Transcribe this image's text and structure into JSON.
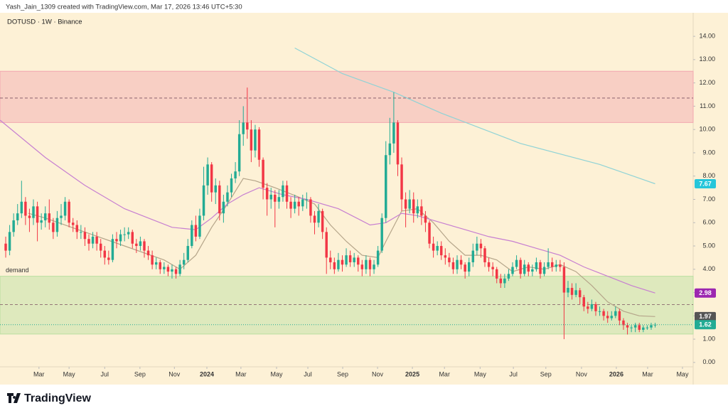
{
  "header": "Yash_Jain_1309 created with TradingView.com, Mar 17, 2026 13:46 UTC+5:30",
  "brand": "TradingView",
  "chart_data": {
    "type": "candlestick",
    "title": "DOTUSD · 1W · Binance",
    "up_color": "#22ab94",
    "down_color": "#f23645",
    "xlim": [
      -1.44,
      173.6
    ],
    "xticks": [
      {
        "value": 8.4,
        "label": "Mar"
      },
      {
        "value": 16.0,
        "label": "May"
      },
      {
        "value": 25.0,
        "label": "Jul"
      },
      {
        "value": 33.9,
        "label": "Sep"
      },
      {
        "value": 42.6,
        "label": "Nov"
      },
      {
        "value": 50.8,
        "label": "2024"
      },
      {
        "value": 59.4,
        "label": "Mar"
      },
      {
        "value": 68.4,
        "label": "May"
      },
      {
        "value": 76.3,
        "label": "Jul"
      },
      {
        "value": 85.1,
        "label": "Sep"
      },
      {
        "value": 93.9,
        "label": "Nov"
      },
      {
        "value": 102.7,
        "label": "2025"
      },
      {
        "value": 110.8,
        "label": "Mar"
      },
      {
        "value": 119.8,
        "label": "May"
      },
      {
        "value": 128.2,
        "label": "Jul"
      },
      {
        "value": 136.4,
        "label": "Sep"
      },
      {
        "value": 145.4,
        "label": "Nov"
      },
      {
        "value": 154.2,
        "label": "2026"
      },
      {
        "value": 162.1,
        "label": "Mar"
      },
      {
        "value": 170.9,
        "label": "May"
      }
    ],
    "ylim": [
      -0.95,
      15.01
    ],
    "yticks": [
      {
        "value": 0,
        "label": "0.00"
      },
      {
        "value": 1,
        "label": "1.00"
      },
      {
        "value": 2,
        "label": "2.00"
      },
      {
        "value": 3,
        "label": "3.00"
      },
      {
        "value": 4,
        "label": "4.00"
      },
      {
        "value": 5,
        "label": "5.00"
      },
      {
        "value": 6,
        "label": "6.00"
      },
      {
        "value": 7,
        "label": "7.00"
      },
      {
        "value": 8,
        "label": "8.00"
      },
      {
        "value": 9,
        "label": "9.00"
      },
      {
        "value": 10,
        "label": "10.00"
      },
      {
        "value": 11,
        "label": "11.00"
      },
      {
        "value": 12,
        "label": "12.00"
      },
      {
        "value": 13,
        "label": "13.00"
      },
      {
        "value": 14,
        "label": "14.00"
      }
    ],
    "open": [
      5.1,
      4.8,
      5.6,
      6.1,
      6.4,
      6.9,
      6.3,
      6.2,
      6.7,
      6.0,
      6.1,
      6.4,
      6.0,
      5.6,
      6.2,
      6.3,
      6.9,
      6.0,
      5.9,
      5.6,
      5.6,
      5.3,
      5.1,
      5.4,
      5.1,
      4.8,
      4.5,
      4.4,
      5.3,
      5.2,
      5.5,
      5.5,
      5.6,
      5.1,
      5.0,
      5.2,
      4.8,
      4.6,
      4.2,
      4.3,
      4.0,
      4.1,
      3.9,
      4.0,
      3.8,
      4.2,
      4.4,
      5.0,
      5.9,
      5.4,
      6.3,
      7.6,
      8.5,
      7.3,
      7.6,
      6.4,
      6.9,
      7.3,
      7.9,
      8.2,
      9.8,
      10.3,
      10.0,
      9.1,
      10.0,
      8.7,
      7.5,
      7.0,
      7.2,
      6.9,
      7.1,
      7.6,
      6.9,
      6.6,
      6.9,
      6.7,
      7.0,
      7.0,
      6.3,
      6.0,
      6.5,
      5.6,
      4.5,
      4.3,
      4.0,
      4.4,
      4.2,
      4.6,
      4.3,
      4.5,
      4.2,
      4.0,
      4.4,
      4.0,
      4.2,
      4.8,
      6.2,
      8.9,
      9.4,
      10.3,
      8.5,
      7.0,
      6.6,
      7.0,
      6.4,
      6.7,
      6.3,
      6.0,
      5.1,
      4.8,
      5.0,
      4.6,
      4.5,
      4.3,
      4.0,
      4.4,
      4.2,
      3.9,
      4.3,
      4.8,
      5.1,
      4.9,
      4.3,
      4.1,
      4.0,
      3.6,
      3.4,
      3.6,
      3.8,
      4.1,
      4.4,
      3.8,
      4.2,
      3.9,
      4.0,
      4.3,
      3.8,
      4.1,
      4.3,
      4.1,
      4.2,
      4.1,
      3.0,
      3.2,
      2.9,
      3.1,
      2.8,
      2.4,
      2.3,
      2.5,
      2.2,
      2.2,
      2.0,
      1.9,
      2.0,
      2.2,
      1.8,
      1.6,
      1.5,
      1.5,
      1.6,
      1.4,
      1.5,
      1.5,
      1.6
    ],
    "high": [
      5.4,
      5.9,
      6.4,
      6.8,
      7.8,
      7.1,
      6.6,
      7.0,
      6.9,
      6.4,
      6.7,
      7.0,
      6.2,
      6.5,
      6.8,
      7.1,
      7.0,
      6.2,
      6.1,
      5.9,
      5.8,
      5.5,
      5.6,
      5.6,
      5.3,
      5.0,
      4.8,
      5.5,
      5.6,
      5.7,
      5.8,
      5.8,
      5.7,
      5.3,
      5.4,
      5.3,
      5.0,
      4.8,
      4.5,
      4.4,
      4.3,
      4.2,
      4.2,
      4.1,
      4.4,
      4.7,
      5.3,
      6.1,
      6.3,
      6.6,
      8.4,
      8.8,
      8.6,
      7.9,
      7.8,
      7.2,
      7.6,
      8.1,
      8.6,
      10.4,
      11.0,
      11.8,
      10.4,
      10.2,
      10.1,
      8.8,
      7.7,
      7.5,
      7.4,
      7.4,
      7.8,
      7.8,
      7.1,
      7.2,
      7.1,
      7.2,
      7.3,
      7.1,
      6.5,
      6.8,
      6.6,
      5.8,
      4.8,
      4.5,
      4.7,
      4.6,
      4.9,
      4.8,
      4.7,
      4.6,
      4.4,
      4.6,
      4.5,
      4.4,
      5.0,
      6.4,
      9.5,
      10.5,
      11.6,
      10.4,
      8.8,
      7.3,
      7.4,
      7.3,
      7.0,
      7.0,
      6.5,
      6.1,
      5.4,
      5.2,
      5.2,
      4.9,
      4.7,
      4.5,
      4.6,
      4.6,
      4.3,
      4.5,
      5.1,
      5.4,
      5.3,
      5.0,
      4.5,
      4.3,
      4.1,
      3.8,
      3.8,
      4.0,
      4.3,
      4.6,
      4.5,
      4.4,
      4.3,
      4.2,
      4.5,
      4.4,
      4.3,
      4.9,
      4.5,
      4.4,
      4.4,
      4.3,
      3.5,
      3.4,
      3.4,
      3.2,
      2.9,
      2.6,
      2.7,
      2.6,
      2.4,
      2.3,
      2.2,
      2.2,
      2.4,
      2.3,
      1.9,
      1.7,
      1.6,
      1.7,
      1.7,
      1.6,
      1.6,
      1.7,
      1.7
    ],
    "low": [
      4.5,
      4.6,
      5.4,
      5.9,
      6.2,
      5.9,
      5.6,
      5.9,
      5.2,
      5.7,
      5.8,
      5.7,
      5.3,
      5.4,
      5.9,
      6.1,
      5.8,
      5.6,
      5.3,
      5.3,
      5.0,
      4.8,
      4.9,
      4.8,
      4.5,
      4.2,
      4.2,
      4.3,
      4.9,
      5.0,
      5.2,
      5.3,
      4.9,
      4.7,
      4.8,
      4.5,
      4.4,
      4.0,
      4.0,
      3.8,
      3.8,
      3.7,
      3.6,
      3.6,
      3.7,
      4.0,
      4.3,
      4.9,
      5.2,
      5.3,
      6.1,
      7.2,
      6.9,
      6.8,
      6.1,
      6.0,
      6.7,
      7.1,
      7.7,
      8.0,
      9.3,
      9.6,
      8.6,
      8.8,
      8.4,
      7.0,
      6.3,
      6.6,
      5.8,
      6.6,
      6.9,
      6.6,
      6.2,
      6.4,
      6.3,
      6.5,
      6.6,
      6.0,
      5.5,
      5.8,
      5.3,
      3.8,
      4.0,
      3.8,
      3.9,
      3.9,
      4.1,
      4.1,
      4.1,
      3.9,
      3.7,
      3.8,
      3.7,
      3.8,
      4.1,
      4.7,
      6.0,
      8.5,
      9.0,
      8.0,
      6.5,
      5.8,
      6.4,
      6.0,
      6.2,
      5.9,
      5.6,
      4.9,
      4.5,
      4.6,
      4.4,
      4.2,
      4.1,
      3.8,
      3.8,
      4.0,
      3.6,
      3.7,
      4.1,
      4.6,
      4.5,
      4.1,
      3.9,
      3.7,
      3.4,
      3.2,
      3.2,
      3.5,
      3.7,
      4.0,
      3.6,
      3.7,
      3.7,
      3.7,
      3.9,
      3.6,
      3.7,
      4.0,
      3.9,
      3.9,
      3.9,
      1.0,
      2.8,
      2.7,
      2.8,
      2.5,
      2.2,
      2.1,
      2.2,
      2.0,
      2.0,
      1.8,
      1.7,
      1.8,
      1.9,
      1.6,
      1.4,
      1.2,
      1.3,
      1.3,
      1.3,
      1.3,
      1.4,
      1.4,
      1.5
    ],
    "close": [
      4.8,
      5.6,
      6.1,
      6.4,
      6.9,
      6.3,
      6.2,
      6.7,
      6.0,
      6.1,
      6.4,
      6.0,
      5.6,
      6.2,
      6.3,
      6.9,
      6.0,
      5.9,
      5.6,
      5.6,
      5.3,
      5.1,
      5.4,
      5.1,
      4.8,
      4.5,
      4.4,
      5.3,
      5.2,
      5.5,
      5.5,
      5.6,
      5.1,
      5.0,
      5.2,
      4.8,
      4.6,
      4.2,
      4.3,
      4.0,
      4.1,
      3.9,
      4.0,
      3.8,
      4.2,
      4.4,
      5.0,
      5.9,
      5.4,
      6.3,
      7.6,
      8.5,
      7.3,
      7.6,
      6.4,
      6.9,
      7.3,
      7.9,
      8.2,
      9.8,
      10.3,
      10.0,
      9.1,
      10.0,
      8.7,
      7.5,
      7.0,
      7.2,
      6.9,
      7.1,
      7.6,
      6.9,
      6.6,
      6.9,
      6.7,
      7.0,
      7.0,
      6.3,
      6.0,
      6.5,
      5.6,
      4.5,
      4.3,
      4.0,
      4.4,
      4.2,
      4.6,
      4.3,
      4.5,
      4.2,
      4.0,
      4.4,
      4.0,
      4.2,
      4.8,
      6.2,
      8.9,
      9.4,
      10.3,
      8.5,
      7.0,
      6.6,
      7.0,
      6.4,
      6.7,
      6.3,
      6.0,
      5.1,
      4.8,
      5.0,
      4.6,
      4.5,
      4.3,
      4.0,
      4.4,
      4.2,
      3.9,
      4.3,
      4.8,
      5.1,
      4.9,
      4.3,
      4.1,
      4.0,
      3.6,
      3.4,
      3.6,
      3.8,
      4.1,
      4.4,
      3.8,
      4.2,
      3.9,
      4.0,
      4.3,
      3.8,
      4.1,
      4.3,
      4.1,
      4.2,
      4.1,
      3.0,
      3.2,
      2.9,
      3.1,
      2.8,
      2.4,
      2.3,
      2.5,
      2.2,
      2.2,
      2.0,
      1.9,
      2.0,
      2.2,
      1.8,
      1.6,
      1.5,
      1.5,
      1.6,
      1.4,
      1.5,
      1.5,
      1.6,
      1.62
    ],
    "last_price_color": "#22ab94",
    "overlays": [
      {
        "color": "#b5a58a",
        "x": [
          5.7,
          10,
          20,
          30,
          40,
          44,
          48,
          52,
          56,
          60,
          63,
          68,
          74,
          78,
          82,
          86,
          90,
          94,
          96,
          100,
          104,
          108,
          112,
          116,
          120,
          124,
          128,
          132,
          136,
          140,
          144,
          148,
          152,
          156,
          160,
          164
        ],
        "values": [
          6.4,
          6.2,
          5.6,
          5.0,
          4.4,
          4.0,
          4.6,
          5.8,
          6.8,
          7.9,
          7.8,
          7.5,
          7.1,
          6.8,
          5.9,
          5.2,
          4.6,
          4.5,
          5.2,
          6.5,
          6.6,
          6.0,
          5.2,
          4.6,
          4.6,
          4.4,
          3.9,
          4.1,
          4.0,
          4.2,
          3.9,
          3.3,
          2.6,
          2.2,
          2.0,
          1.97
        ],
        "badge_color": "#555555"
      },
      {
        "color": "#c77fd1",
        "x": [
          -1.4,
          10,
          20,
          30,
          42,
          48,
          52,
          56,
          60,
          64,
          70,
          76,
          84,
          92,
          96,
          100,
          104,
          110,
          116,
          122,
          128,
          134,
          140,
          146,
          152,
          158,
          164
        ],
        "values": [
          10.4,
          8.8,
          7.6,
          6.6,
          5.8,
          5.7,
          6.2,
          6.8,
          7.2,
          7.5,
          7.2,
          7.0,
          6.6,
          5.9,
          6.0,
          6.4,
          6.3,
          6.0,
          5.7,
          5.4,
          5.2,
          4.9,
          4.6,
          4.1,
          3.7,
          3.3,
          2.98
        ],
        "badge_color": "#9c27b0"
      },
      {
        "color": "#8fd3d6",
        "x": [
          73,
          85,
          98,
          110,
          130,
          150,
          164
        ],
        "values": [
          13.5,
          12.4,
          11.6,
          10.7,
          9.4,
          8.5,
          7.67
        ],
        "badge_color": "#26c6da"
      }
    ],
    "zones": [
      {
        "from": 10.3,
        "to": 12.5,
        "midline": 11.35,
        "color": "#f2a7b0"
      },
      {
        "from": 1.22,
        "to": 3.7,
        "midline": 2.48,
        "color": "#b9dfa0",
        "label": "demand"
      }
    ]
  }
}
